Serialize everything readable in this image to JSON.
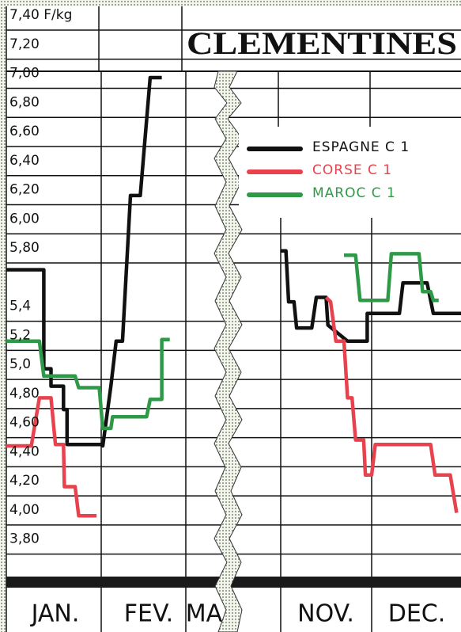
{
  "chart_data": {
    "type": "line",
    "title": "CLEMENTINES",
    "categories": [
      "JAN.",
      "FEV.",
      "MA",
      "NOV.",
      "DEC."
    ],
    "ylim": [
      3.7,
      7.4
    ],
    "xlim": [
      0,
      5.09
    ],
    "yticks": [
      {
        "value": 7.4,
        "label": "7,40 F/kg"
      },
      {
        "value": 7.2,
        "label": "7,20"
      },
      {
        "value": 7.0,
        "label": "7,00"
      },
      {
        "value": 6.8,
        "label": "6,80"
      },
      {
        "value": 6.6,
        "label": "6,60"
      },
      {
        "value": 6.4,
        "label": "6,40"
      },
      {
        "value": 6.2,
        "label": "6,20"
      },
      {
        "value": 6.0,
        "label": "6,00"
      },
      {
        "value": 5.8,
        "label": "5,80"
      },
      {
        "value": 5.4,
        "label": "5,4"
      },
      {
        "value": 5.2,
        "label": "5,2"
      },
      {
        "value": 5.0,
        "label": "5,0"
      },
      {
        "value": 4.8,
        "label": "4,80"
      },
      {
        "value": 4.6,
        "label": "4,60"
      },
      {
        "value": 4.4,
        "label": "4,40"
      },
      {
        "value": 4.2,
        "label": "4,20"
      },
      {
        "value": 4.0,
        "label": "4,00"
      },
      {
        "value": 3.8,
        "label": "3,80"
      }
    ],
    "grid": true,
    "series": [
      {
        "name": "ESPAGNE C 1",
        "color": "#111111",
        "x": [
          0,
          0.42,
          0.42,
          0.5,
          0.5,
          0.64,
          0.64,
          0.68,
          0.68,
          1.06,
          1.08,
          1.17,
          1.23,
          1.3,
          1.39,
          1.5,
          1.61,
          1.74,
          null,
          3.07,
          3.13,
          3.16,
          3.22,
          3.25,
          3.42,
          3.47,
          3.58,
          3.6,
          3.82,
          4.04,
          4.04,
          4.4,
          4.44,
          4.71,
          4.78,
          5.09
        ],
        "values": [
          5.65,
          5.65,
          4.97,
          4.97,
          4.85,
          4.85,
          4.69,
          4.69,
          4.45,
          4.45,
          4.44,
          4.85,
          5.16,
          5.16,
          6.16,
          6.16,
          6.97,
          6.97,
          null,
          5.78,
          5.78,
          5.43,
          5.43,
          5.25,
          5.25,
          5.46,
          5.46,
          5.27,
          5.16,
          5.16,
          5.35,
          5.35,
          5.56,
          5.56,
          5.35,
          5.35
        ]
      },
      {
        "name": "CORSE C 1",
        "color": "#e8424e",
        "x": [
          0,
          0.28,
          0.37,
          0.5,
          0.55,
          0.64,
          0.65,
          0.77,
          0.81,
          1.01,
          null,
          3.58,
          3.63,
          3.69,
          3.78,
          3.82,
          3.87,
          3.91,
          4.0,
          4.02,
          4.09,
          4.13,
          4.75,
          4.8,
          4.97,
          5.04
        ],
        "values": [
          4.44,
          4.44,
          4.77,
          4.77,
          4.45,
          4.45,
          4.16,
          4.16,
          3.96,
          3.96,
          null,
          5.46,
          5.43,
          5.16,
          5.16,
          4.77,
          4.77,
          4.48,
          4.48,
          4.24,
          4.24,
          4.45,
          4.45,
          4.24,
          4.24,
          3.98
        ]
      },
      {
        "name": "MAROC C 1",
        "color": "#2e9a48",
        "x": [
          0,
          0.37,
          0.42,
          0.77,
          0.81,
          1.04,
          1.08,
          1.17,
          1.19,
          1.57,
          1.61,
          1.74,
          1.74,
          1.83,
          null,
          3.78,
          3.91,
          3.96,
          4.27,
          4.31,
          4.62,
          4.66,
          4.75,
          4.78,
          4.84
        ],
        "values": [
          5.16,
          5.16,
          4.92,
          4.92,
          4.84,
          4.84,
          4.56,
          4.56,
          4.64,
          4.64,
          4.76,
          4.76,
          5.17,
          5.17,
          null,
          5.75,
          5.75,
          5.44,
          5.44,
          5.76,
          5.76,
          5.5,
          5.5,
          5.44,
          5.44
        ]
      }
    ]
  }
}
